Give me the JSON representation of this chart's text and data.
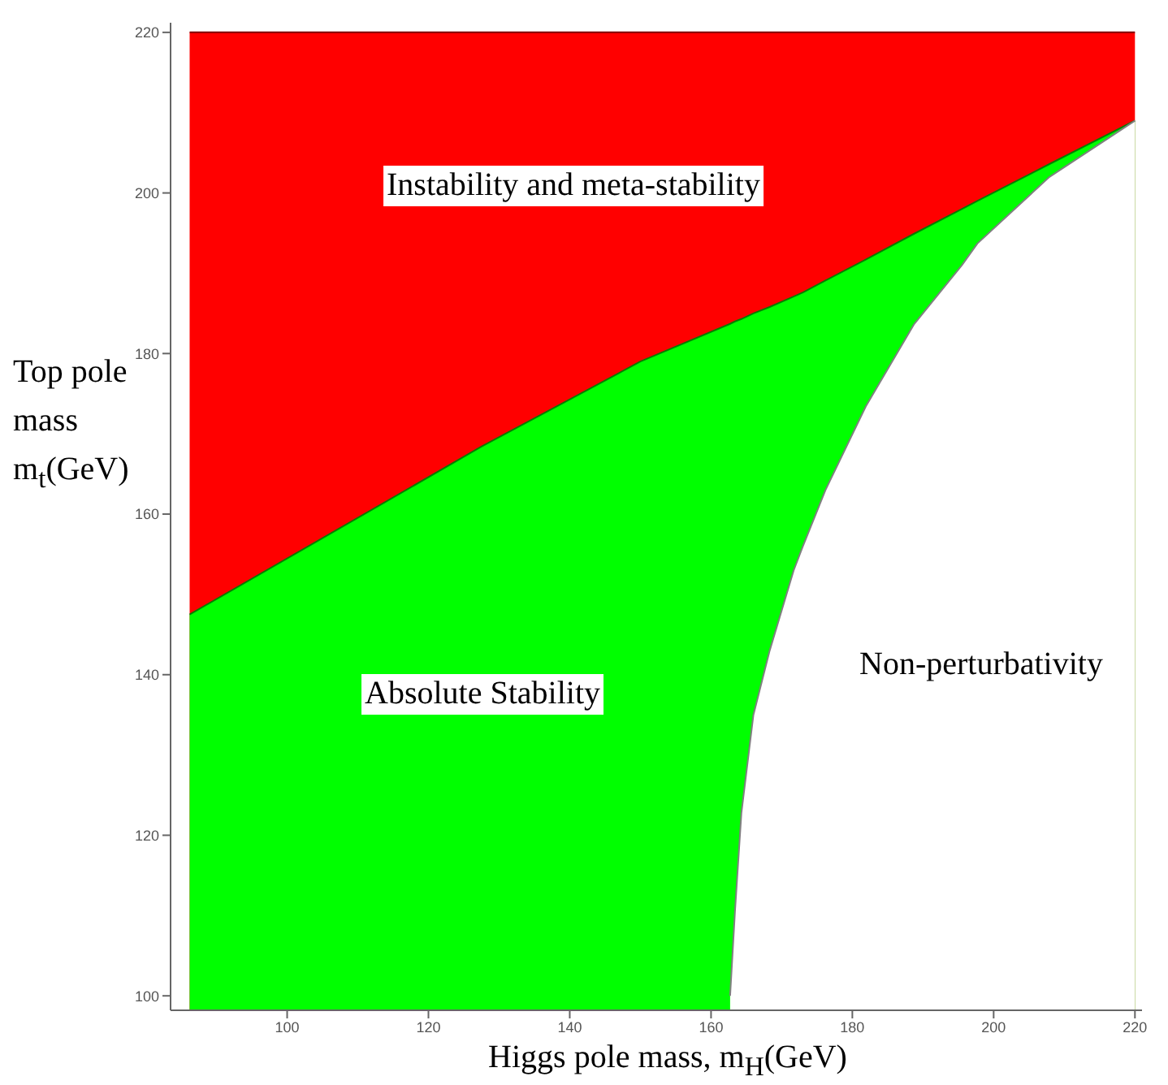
{
  "chart_data": {
    "type": "area",
    "xlabel": "Higgs pole mass, m$_{H}$(GeV)",
    "ylabel": "Top pole mass m$_{t}$(GeV)",
    "x": [
      86.2,
      105,
      127.5,
      150,
      162.7,
      163.4,
      164.3,
      166,
      168.3,
      171.7,
      173,
      176.2,
      181.9,
      188.7,
      195.5,
      197.7,
      207.9,
      220
    ],
    "series": [
      {
        "color": "#ff0000",
        "values": [
          220,
          220,
          220,
          220,
          220,
          220,
          220,
          220,
          220,
          220,
          220,
          220,
          220,
          220,
          220,
          220,
          220,
          220
        ]
      },
      {
        "color": "#00ff00",
        "values": [
          147.5,
          157,
          168.4,
          179,
          183.7,
          184,
          184.3,
          185,
          185.8,
          187.1,
          187.6,
          189.1,
          191.7,
          194.9,
          198,
          199,
          203.6,
          209
        ]
      },
      {
        "color": "#ffffff",
        "values": [
          null,
          null,
          null,
          null,
          100,
          110.7,
          122.8,
          135,
          143,
          153,
          156,
          163,
          173.4,
          183.6,
          191,
          193.7,
          202,
          209
        ]
      }
    ],
    "xlim": [
      83.5,
      221
    ],
    "xticks": [
      100,
      120,
      140,
      160,
      180,
      200,
      220
    ],
    "ylim": [
      98.2,
      221.2
    ],
    "yticks": [
      100,
      120,
      140,
      160,
      180,
      200,
      220
    ],
    "grid": false,
    "legend": false,
    "annotations": [
      "Instability and meta-stability",
      "Absolute Stability",
      "Non-perturbativity"
    ]
  }
}
